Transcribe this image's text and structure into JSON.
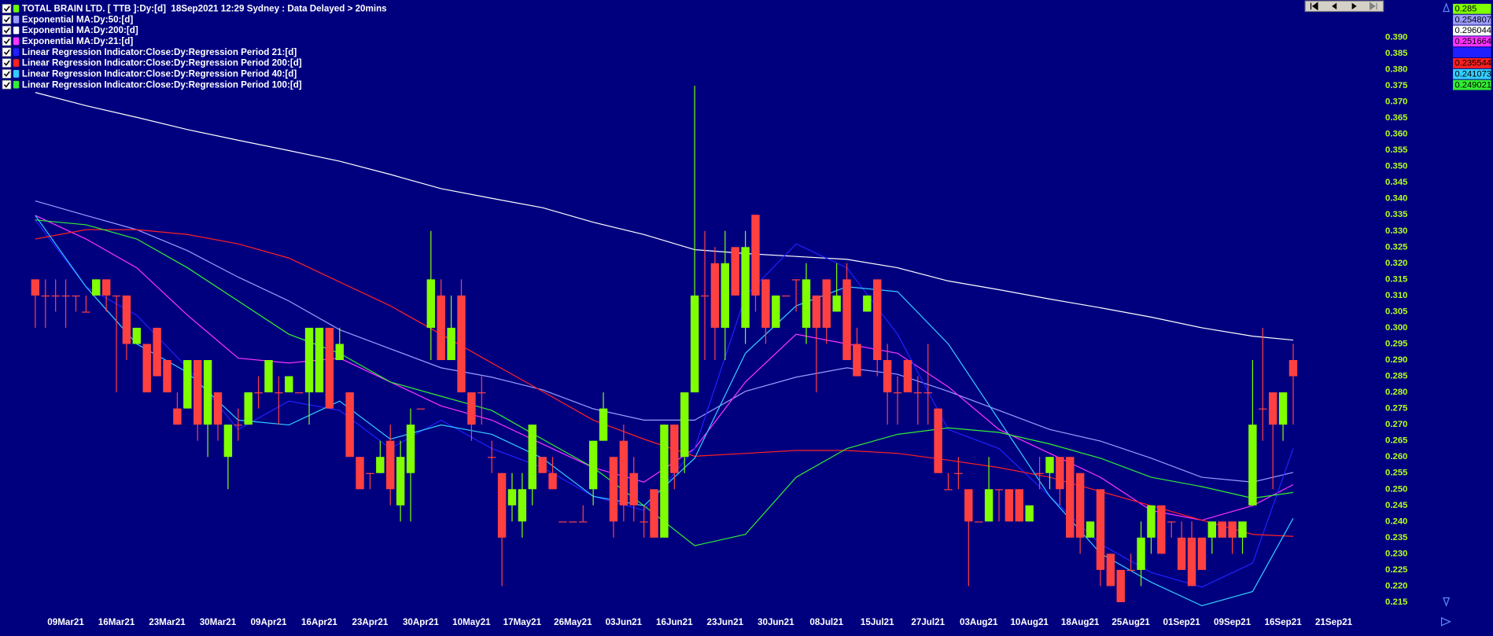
{
  "chart_data": {
    "type": "candlestick",
    "name": "TOTAL BRAIN LTD. [ TTB ]:Dy:[d]  18Sep2021 12:29 Sydney : Data Delayed > 20mins",
    "color": "#66ff00",
    "up_color": "#80ff00",
    "down_color": "#ff4040",
    "last": 0.285,
    "open": [
      0.315,
      0.31,
      0.31,
      0.31,
      0.31,
      0.305,
      0.31,
      0.315,
      0.31,
      0.31,
      0.295,
      0.295,
      0.3,
      0.29,
      0.275,
      0.275,
      0.29,
      0.27,
      0.28,
      0.26,
      0.27,
      0.27,
      0.28,
      0.28,
      0.28,
      0.28,
      0.28,
      0.28,
      0.28,
      0.3,
      0.29,
      0.28,
      0.26,
      0.255,
      0.255,
      0.265,
      0.245,
      0.255,
      0.275,
      0.3,
      0.31,
      0.29,
      0.31,
      0.28,
      0.28,
      0.26,
      0.255,
      0.245,
      0.24,
      0.25,
      0.26,
      0.255,
      0.24,
      0.24,
      0.24,
      0.25,
      0.265,
      0.26,
      0.265,
      0.255,
      0.24,
      0.25,
      0.235,
      0.27,
      0.26,
      0.28,
      0.31,
      0.32,
      0.3,
      0.325,
      0.3,
      0.335,
      0.315,
      0.3,
      0.31,
      0.315,
      0.3,
      0.31,
      0.315,
      0.305,
      0.315,
      0.295,
      0.305,
      0.315,
      0.29,
      0.28,
      0.29,
      0.28,
      0.28,
      0.275,
      0.25,
      0.255,
      0.25,
      0.24,
      0.24,
      0.25,
      0.25,
      0.25,
      0.24,
      0.255,
      0.255,
      0.26,
      0.26,
      0.255,
      0.235,
      0.25,
      0.23,
      0.225,
      0.225,
      0.225,
      0.235,
      0.245,
      0.24,
      0.235,
      0.235,
      0.235,
      0.235,
      0.24,
      0.24,
      0.235,
      0.245,
      0.275,
      0.28,
      0.27,
      0.29
    ],
    "high": [
      0.315,
      0.315,
      0.315,
      0.315,
      0.31,
      0.31,
      0.315,
      0.315,
      0.31,
      0.31,
      0.3,
      0.295,
      0.3,
      0.29,
      0.28,
      0.29,
      0.29,
      0.29,
      0.28,
      0.27,
      0.275,
      0.28,
      0.285,
      0.29,
      0.285,
      0.285,
      0.28,
      0.3,
      0.3,
      0.3,
      0.3,
      0.28,
      0.26,
      0.255,
      0.265,
      0.27,
      0.265,
      0.275,
      0.275,
      0.33,
      0.315,
      0.31,
      0.315,
      0.28,
      0.285,
      0.265,
      0.255,
      0.255,
      0.255,
      0.27,
      0.26,
      0.26,
      0.24,
      0.24,
      0.245,
      0.265,
      0.28,
      0.26,
      0.27,
      0.26,
      0.245,
      0.25,
      0.27,
      0.27,
      0.28,
      0.375,
      0.33,
      0.325,
      0.33,
      0.325,
      0.33,
      0.335,
      0.315,
      0.31,
      0.31,
      0.315,
      0.32,
      0.31,
      0.315,
      0.32,
      0.32,
      0.3,
      0.31,
      0.315,
      0.295,
      0.285,
      0.29,
      0.285,
      0.295,
      0.275,
      0.255,
      0.26,
      0.25,
      0.24,
      0.26,
      0.25,
      0.25,
      0.25,
      0.245,
      0.26,
      0.26,
      0.26,
      0.26,
      0.255,
      0.24,
      0.25,
      0.23,
      0.225,
      0.23,
      0.24,
      0.245,
      0.245,
      0.24,
      0.24,
      0.24,
      0.235,
      0.24,
      0.24,
      0.24,
      0.24,
      0.29,
      0.3,
      0.28,
      0.28,
      0.295
    ],
    "low": [
      0.3,
      0.3,
      0.305,
      0.3,
      0.305,
      0.305,
      0.31,
      0.305,
      0.28,
      0.29,
      0.295,
      0.28,
      0.285,
      0.28,
      0.27,
      0.275,
      0.265,
      0.26,
      0.265,
      0.25,
      0.265,
      0.27,
      0.275,
      0.28,
      0.27,
      0.28,
      0.28,
      0.27,
      0.28,
      0.275,
      0.29,
      0.26,
      0.25,
      0.25,
      0.255,
      0.245,
      0.24,
      0.24,
      0.275,
      0.29,
      0.29,
      0.29,
      0.28,
      0.265,
      0.27,
      0.255,
      0.22,
      0.24,
      0.235,
      0.245,
      0.255,
      0.25,
      0.24,
      0.24,
      0.24,
      0.245,
      0.265,
      0.235,
      0.24,
      0.24,
      0.235,
      0.235,
      0.235,
      0.25,
      0.255,
      0.28,
      0.29,
      0.29,
      0.29,
      0.31,
      0.295,
      0.305,
      0.295,
      0.3,
      0.31,
      0.305,
      0.295,
      0.28,
      0.295,
      0.305,
      0.29,
      0.285,
      0.305,
      0.285,
      0.27,
      0.27,
      0.28,
      0.27,
      0.27,
      0.255,
      0.25,
      0.25,
      0.22,
      0.24,
      0.24,
      0.24,
      0.24,
      0.24,
      0.24,
      0.25,
      0.25,
      0.245,
      0.235,
      0.23,
      0.235,
      0.22,
      0.22,
      0.215,
      0.225,
      0.22,
      0.23,
      0.23,
      0.235,
      0.225,
      0.22,
      0.225,
      0.23,
      0.235,
      0.23,
      0.23,
      0.245,
      0.265,
      0.25,
      0.265,
      0.27
    ],
    "close": [
      0.31,
      0.31,
      0.31,
      0.31,
      0.31,
      0.305,
      0.315,
      0.31,
      0.31,
      0.295,
      0.3,
      0.28,
      0.285,
      0.28,
      0.27,
      0.29,
      0.27,
      0.29,
      0.27,
      0.27,
      0.27,
      0.28,
      0.28,
      0.29,
      0.28,
      0.285,
      0.28,
      0.3,
      0.3,
      0.275,
      0.295,
      0.26,
      0.25,
      0.255,
      0.26,
      0.25,
      0.26,
      0.27,
      0.275,
      0.315,
      0.29,
      0.3,
      0.28,
      0.27,
      0.28,
      0.26,
      0.235,
      0.25,
      0.25,
      0.27,
      0.255,
      0.25,
      0.24,
      0.24,
      0.24,
      0.265,
      0.275,
      0.24,
      0.245,
      0.245,
      0.24,
      0.235,
      0.27,
      0.255,
      0.28,
      0.31,
      0.31,
      0.3,
      0.32,
      0.31,
      0.325,
      0.31,
      0.3,
      0.31,
      0.31,
      0.315,
      0.315,
      0.3,
      0.3,
      0.31,
      0.29,
      0.285,
      0.31,
      0.29,
      0.28,
      0.28,
      0.28,
      0.28,
      0.28,
      0.255,
      0.25,
      0.255,
      0.24,
      0.24,
      0.25,
      0.25,
      0.24,
      0.24,
      0.245,
      0.255,
      0.26,
      0.25,
      0.235,
      0.235,
      0.24,
      0.225,
      0.22,
      0.215,
      0.225,
      0.235,
      0.245,
      0.23,
      0.24,
      0.225,
      0.22,
      0.225,
      0.24,
      0.235,
      0.235,
      0.24,
      0.27,
      0.275,
      0.27,
      0.28,
      0.285
    ],
    "xlim": [
      -0.5,
      131
    ],
    "xticks": [
      {
        "value": 3,
        "label": "09Mar21"
      },
      {
        "value": 8,
        "label": "16Mar21"
      },
      {
        "value": 13,
        "label": "23Mar21"
      },
      {
        "value": 18,
        "label": "30Mar21"
      },
      {
        "value": 23,
        "label": "09Apr21"
      },
      {
        "value": 28,
        "label": "16Apr21"
      },
      {
        "value": 33,
        "label": "23Apr21"
      },
      {
        "value": 38,
        "label": "30Apr21"
      },
      {
        "value": 43,
        "label": "10May21"
      },
      {
        "value": 48,
        "label": "17May21"
      },
      {
        "value": 53,
        "label": "26May21"
      },
      {
        "value": 58,
        "label": "03Jun21"
      },
      {
        "value": 63,
        "label": "16Jun21"
      },
      {
        "value": 68,
        "label": "23Jun21"
      },
      {
        "value": 73,
        "label": "30Jun21"
      },
      {
        "value": 78,
        "label": "08Jul21"
      },
      {
        "value": 83,
        "label": "15Jul21"
      },
      {
        "value": 88,
        "label": "27Jul21"
      },
      {
        "value": 93,
        "label": "03Aug21"
      },
      {
        "value": 98,
        "label": "10Aug21"
      },
      {
        "value": 103,
        "label": "18Aug21"
      },
      {
        "value": 108,
        "label": "25Aug21"
      },
      {
        "value": 113,
        "label": "01Sep21"
      },
      {
        "value": 118,
        "label": "09Sep21"
      },
      {
        "value": 123,
        "label": "16Sep21"
      },
      {
        "value": 128,
        "label": "21Sep21"
      }
    ],
    "ylim": [
      0.2125,
      0.3925
    ],
    "yticks": [
      {
        "value": 0.39,
        "label": "0.390"
      },
      0.385,
      {
        "value": 0.38,
        "label": "0.380"
      },
      0.375,
      {
        "value": 0.37,
        "label": "0.370"
      },
      0.365,
      {
        "value": 0.36,
        "label": "0.360"
      },
      0.355,
      {
        "value": 0.35,
        "label": "0.350"
      },
      0.345,
      {
        "value": 0.34,
        "label": "0.340"
      },
      0.335,
      {
        "value": 0.33,
        "label": "0.330"
      },
      0.325,
      {
        "value": 0.32,
        "label": "0.320"
      },
      0.315,
      {
        "value": 0.31,
        "label": "0.310"
      },
      0.305,
      {
        "value": 0.3,
        "label": "0.300"
      },
      0.295,
      {
        "value": 0.29,
        "label": "0.290"
      },
      0.285,
      {
        "value": 0.28,
        "label": "0.280"
      },
      0.275,
      {
        "value": 0.27,
        "label": "0.270"
      },
      0.265,
      {
        "value": 0.26,
        "label": "0.260"
      },
      0.255,
      {
        "value": 0.25,
        "label": "0.250"
      },
      0.245,
      {
        "value": 0.24,
        "label": "0.240"
      },
      0.235,
      {
        "value": 0.23,
        "label": "0.230"
      },
      0.225,
      {
        "value": 0.22,
        "label": "0.220"
      },
      0.215
    ],
    "indicators": {
      "x": [
        0,
        5,
        10,
        15,
        20,
        25,
        30,
        35,
        40,
        45,
        50,
        55,
        60,
        65,
        70,
        75,
        80,
        85,
        90,
        95,
        100,
        105,
        110,
        115,
        120,
        124
      ],
      "series": [
        {
          "name": "Exponential MA:Dy:50:[d]",
          "color": "#9c9cff",
          "last": 0.254807,
          "values": [
            0.3393,
            0.3348,
            0.3304,
            0.3239,
            0.3157,
            0.3083,
            0.2994,
            0.2935,
            0.2876,
            0.2847,
            0.2808,
            0.2749,
            0.2714,
            0.2714,
            0.2803,
            0.2847,
            0.2876,
            0.2856,
            0.2803,
            0.2744,
            0.2685,
            0.2649,
            0.2596,
            0.2537,
            0.2522,
            0.2552
          ]
        },
        {
          "name": "Exponential MA:Dy:200:[d]",
          "color": "#ffffff",
          "last": 0.296044,
          "values": [
            0.3729,
            0.3688,
            0.3652,
            0.3614,
            0.3581,
            0.3549,
            0.3516,
            0.3475,
            0.3431,
            0.3401,
            0.3372,
            0.3327,
            0.3289,
            0.3242,
            0.323,
            0.3221,
            0.3212,
            0.3186,
            0.3145,
            0.3118,
            0.3089,
            0.3062,
            0.3033,
            0.3,
            0.2974,
            0.2962
          ]
        },
        {
          "name": "Exponential MA:Dy:21:[d]",
          "color": "#ff33ff",
          "last": 0.251664,
          "values": [
            0.3348,
            0.3275,
            0.3186,
            0.3039,
            0.2906,
            0.2891,
            0.2906,
            0.2832,
            0.2758,
            0.2714,
            0.264,
            0.2567,
            0.2522,
            0.2626,
            0.2832,
            0.298,
            0.295,
            0.2921,
            0.2817,
            0.2685,
            0.2611,
            0.2537,
            0.2434,
            0.2404,
            0.2449,
            0.2514
          ]
        },
        {
          "name": "Linear Regression Indicator:Close:Dy:Regression Period 21:[d]",
          "color": "#2020ff",
          "values": [
            0.3334,
            0.3127,
            0.3039,
            0.2876,
            0.2685,
            0.2773,
            0.2744,
            0.2626,
            0.2714,
            0.2626,
            0.2567,
            0.2478,
            0.2434,
            0.2626,
            0.3098,
            0.326,
            0.3186,
            0.298,
            0.2685,
            0.2626,
            0.2478,
            0.233,
            0.2242,
            0.2197,
            0.2271,
            0.2626
          ]
        },
        {
          "name": "Linear Regression Indicator:Close:Dy:Regression Period 200:[d]",
          "color": "#ff2020",
          "last": 0.235544,
          "values": [
            0.3275,
            0.3304,
            0.3304,
            0.3289,
            0.326,
            0.3216,
            0.3142,
            0.3068,
            0.298,
            0.2891,
            0.2803,
            0.2714,
            0.2655,
            0.2602,
            0.2611,
            0.262,
            0.262,
            0.2611,
            0.259,
            0.2567,
            0.2537,
            0.2493,
            0.2449,
            0.2404,
            0.236,
            0.2354
          ]
        },
        {
          "name": "Linear Regression Indicator:Close:Dy:Regression Period 40:[d]",
          "color": "#33ccff",
          "last": 0.241073,
          "values": [
            0.3348,
            0.3127,
            0.295,
            0.2862,
            0.2714,
            0.2699,
            0.2773,
            0.2655,
            0.2699,
            0.267,
            0.2596,
            0.2478,
            0.2449,
            0.2596,
            0.2921,
            0.3068,
            0.3127,
            0.3112,
            0.295,
            0.2714,
            0.2478,
            0.2301,
            0.2212,
            0.2139,
            0.2183,
            0.241
          ]
        },
        {
          "name": "Linear Regression Indicator:Close:Dy:Regression Period 100:[d]",
          "color": "#33ee33",
          "last": 0.249021,
          "values": [
            0.3334,
            0.3319,
            0.3275,
            0.3186,
            0.3083,
            0.298,
            0.2921,
            0.2832,
            0.2788,
            0.2744,
            0.2655,
            0.2567,
            0.2449,
            0.2325,
            0.236,
            0.2537,
            0.2626,
            0.267,
            0.269,
            0.2676,
            0.264,
            0.2596,
            0.2537,
            0.2508,
            0.2472,
            0.249
          ]
        }
      ]
    }
  }
}
